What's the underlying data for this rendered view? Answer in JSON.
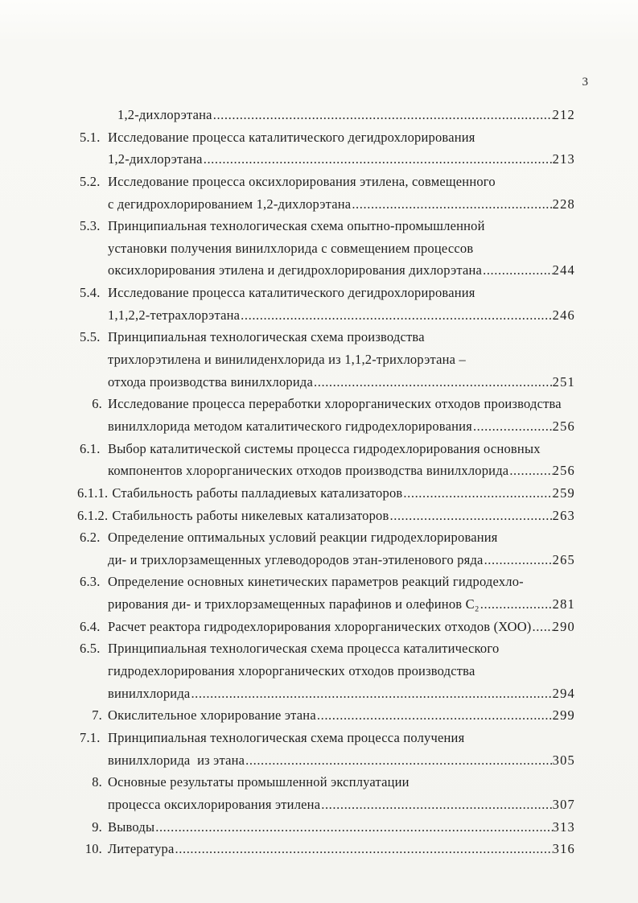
{
  "page": {
    "number": "3",
    "paper_color": "#f6f6f2",
    "ink_color": "#1e1e1e"
  },
  "toc": {
    "entries": [
      {
        "num": "",
        "level": "cont",
        "lines": [
          {
            "text": "1,2-дихлорэтана",
            "page": "212"
          }
        ]
      },
      {
        "num": "5.1.",
        "level": "sub",
        "lines": [
          {
            "text": "Исследование процесса каталитического дегидрохлорирования"
          },
          {
            "text": "1,2-дихлорэтана",
            "page": "213"
          }
        ]
      },
      {
        "num": "5.2.",
        "level": "sub",
        "lines": [
          {
            "text": "Исследование процесса оксихлорирования этилена, совмещенного"
          },
          {
            "text": "с дегидрохлорированием 1,2-дихлорэтана",
            "page": "228"
          }
        ]
      },
      {
        "num": "5.3.",
        "level": "sub",
        "lines": [
          {
            "text": "Принципиальная технологическая схема опытно-промышленной"
          },
          {
            "text": "установки получения винилхлорида с совмещением процессов"
          },
          {
            "text": "оксихлорирования этилена и дегидрохлорирования дихлорэтана",
            "page": "244"
          }
        ]
      },
      {
        "num": "5.4.",
        "level": "sub",
        "lines": [
          {
            "text": "Исследование процесса каталитического дегидрохлорирования"
          },
          {
            "text": "1,1,2,2-тетрахлорэтана",
            "page": "246"
          }
        ]
      },
      {
        "num": "5.5.",
        "level": "sub",
        "lines": [
          {
            "text": "Принципиальная технологическая схема производства"
          },
          {
            "text": "трихлорэтилена и винилиденхлорида из 1,1,2-трихлорэтана –"
          },
          {
            "text": "отхода производства винилхлорида",
            "page": "251"
          }
        ]
      },
      {
        "num": "6.",
        "level": "ch",
        "lines": [
          {
            "text": "Исследование процесса переработки хлорорганических отходов производства"
          },
          {
            "text": "винилхлорида методом каталитического гидродехлорирования",
            "page": "256"
          }
        ]
      },
      {
        "num": "6.1.",
        "level": "sub",
        "lines": [
          {
            "text": "Выбор каталитической системы процесса гидродехлорирования основных"
          },
          {
            "text": "компонентов хлорорганических отходов производства винилхлорида",
            "page": "256"
          }
        ]
      },
      {
        "num": "6.1.1.",
        "level": "sub2",
        "lines": [
          {
            "text": "Стабильность работы палладиевых катализаторов",
            "page": "259"
          }
        ]
      },
      {
        "num": "6.1.2.",
        "level": "sub2",
        "lines": [
          {
            "text": "Стабильность работы никелевых катализаторов",
            "page": "263"
          }
        ]
      },
      {
        "num": "6.2.",
        "level": "sub",
        "lines": [
          {
            "text": "Определение оптимальных условий реакции гидродехлорирования"
          },
          {
            "text": "ди- и трихлорзамещенных углеводородов этан-этиленового ряда",
            "page": "265"
          }
        ]
      },
      {
        "num": "6.3.",
        "level": "sub",
        "lines": [
          {
            "text": "Определение основных кинетических параметров реакций гидродехло-"
          },
          {
            "text": "рирования ди- и трихлорзамещенных парафинов и олефинов С₂",
            "page": "281"
          }
        ]
      },
      {
        "num": "6.4.",
        "level": "sub",
        "lines": [
          {
            "text": "Расчет реактора гидродехлорирования хлорорганических отходов (ХОО)",
            "page": "290"
          }
        ]
      },
      {
        "num": "6.5.",
        "level": "sub",
        "lines": [
          {
            "text": "Принципиальная технологическая схема процесса каталитического"
          },
          {
            "text": "гидродехлорирования хлорорганических отходов производства"
          },
          {
            "text": "винилхлорида",
            "page": "294"
          }
        ]
      },
      {
        "num": "7.",
        "level": "ch",
        "lines": [
          {
            "text": "Окислительное хлорирование этана",
            "page": "299"
          }
        ]
      },
      {
        "num": "7.1.",
        "level": "sub",
        "lines": [
          {
            "text": "Принципиальная технологическая схема процесса получения"
          },
          {
            "text": "винилхлорида  из этана",
            "page": "305"
          }
        ]
      },
      {
        "num": "8.",
        "level": "ch",
        "lines": [
          {
            "text": "Основные результаты промышленной эксплуатации"
          },
          {
            "text": "процесса оксихлорирования этилена",
            "page": "307"
          }
        ]
      },
      {
        "num": "9.",
        "level": "ch",
        "lines": [
          {
            "text": "Выводы",
            "page": "313"
          }
        ]
      },
      {
        "num": "10.",
        "level": "ch",
        "lines": [
          {
            "text": "Литература",
            "page": "316"
          }
        ]
      }
    ]
  }
}
